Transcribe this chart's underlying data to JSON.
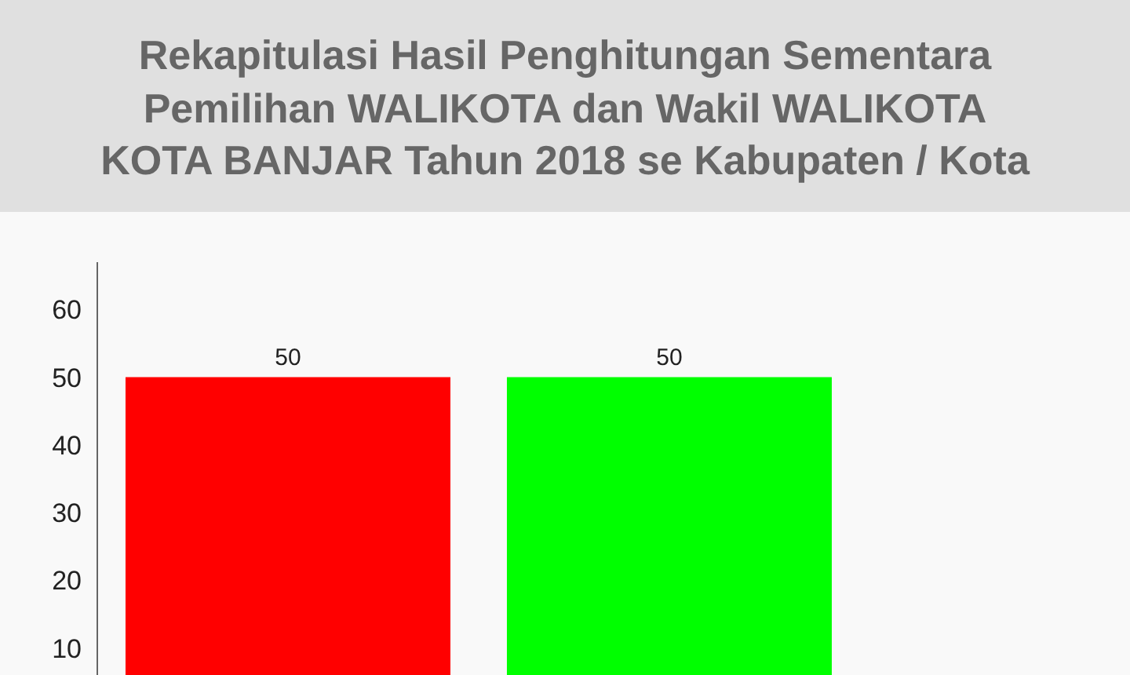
{
  "chart_data": {
    "type": "bar",
    "title": "Rekapitulasi Hasil Penghitungan Sementara\nPemilihan WALIKOTA dan Wakil WALIKOTA\nKOTA BANJAR Tahun 2018 se Kabupaten / Kota",
    "categories": [
      null,
      null
    ],
    "values": [
      50,
      50
    ],
    "colors": [
      "#ff0000",
      "#00ff00"
    ],
    "ylim": [
      6,
      67
    ],
    "yticks": [
      10,
      20,
      30,
      40,
      50,
      60
    ],
    "data_labels": true,
    "tick_labels": "y"
  }
}
